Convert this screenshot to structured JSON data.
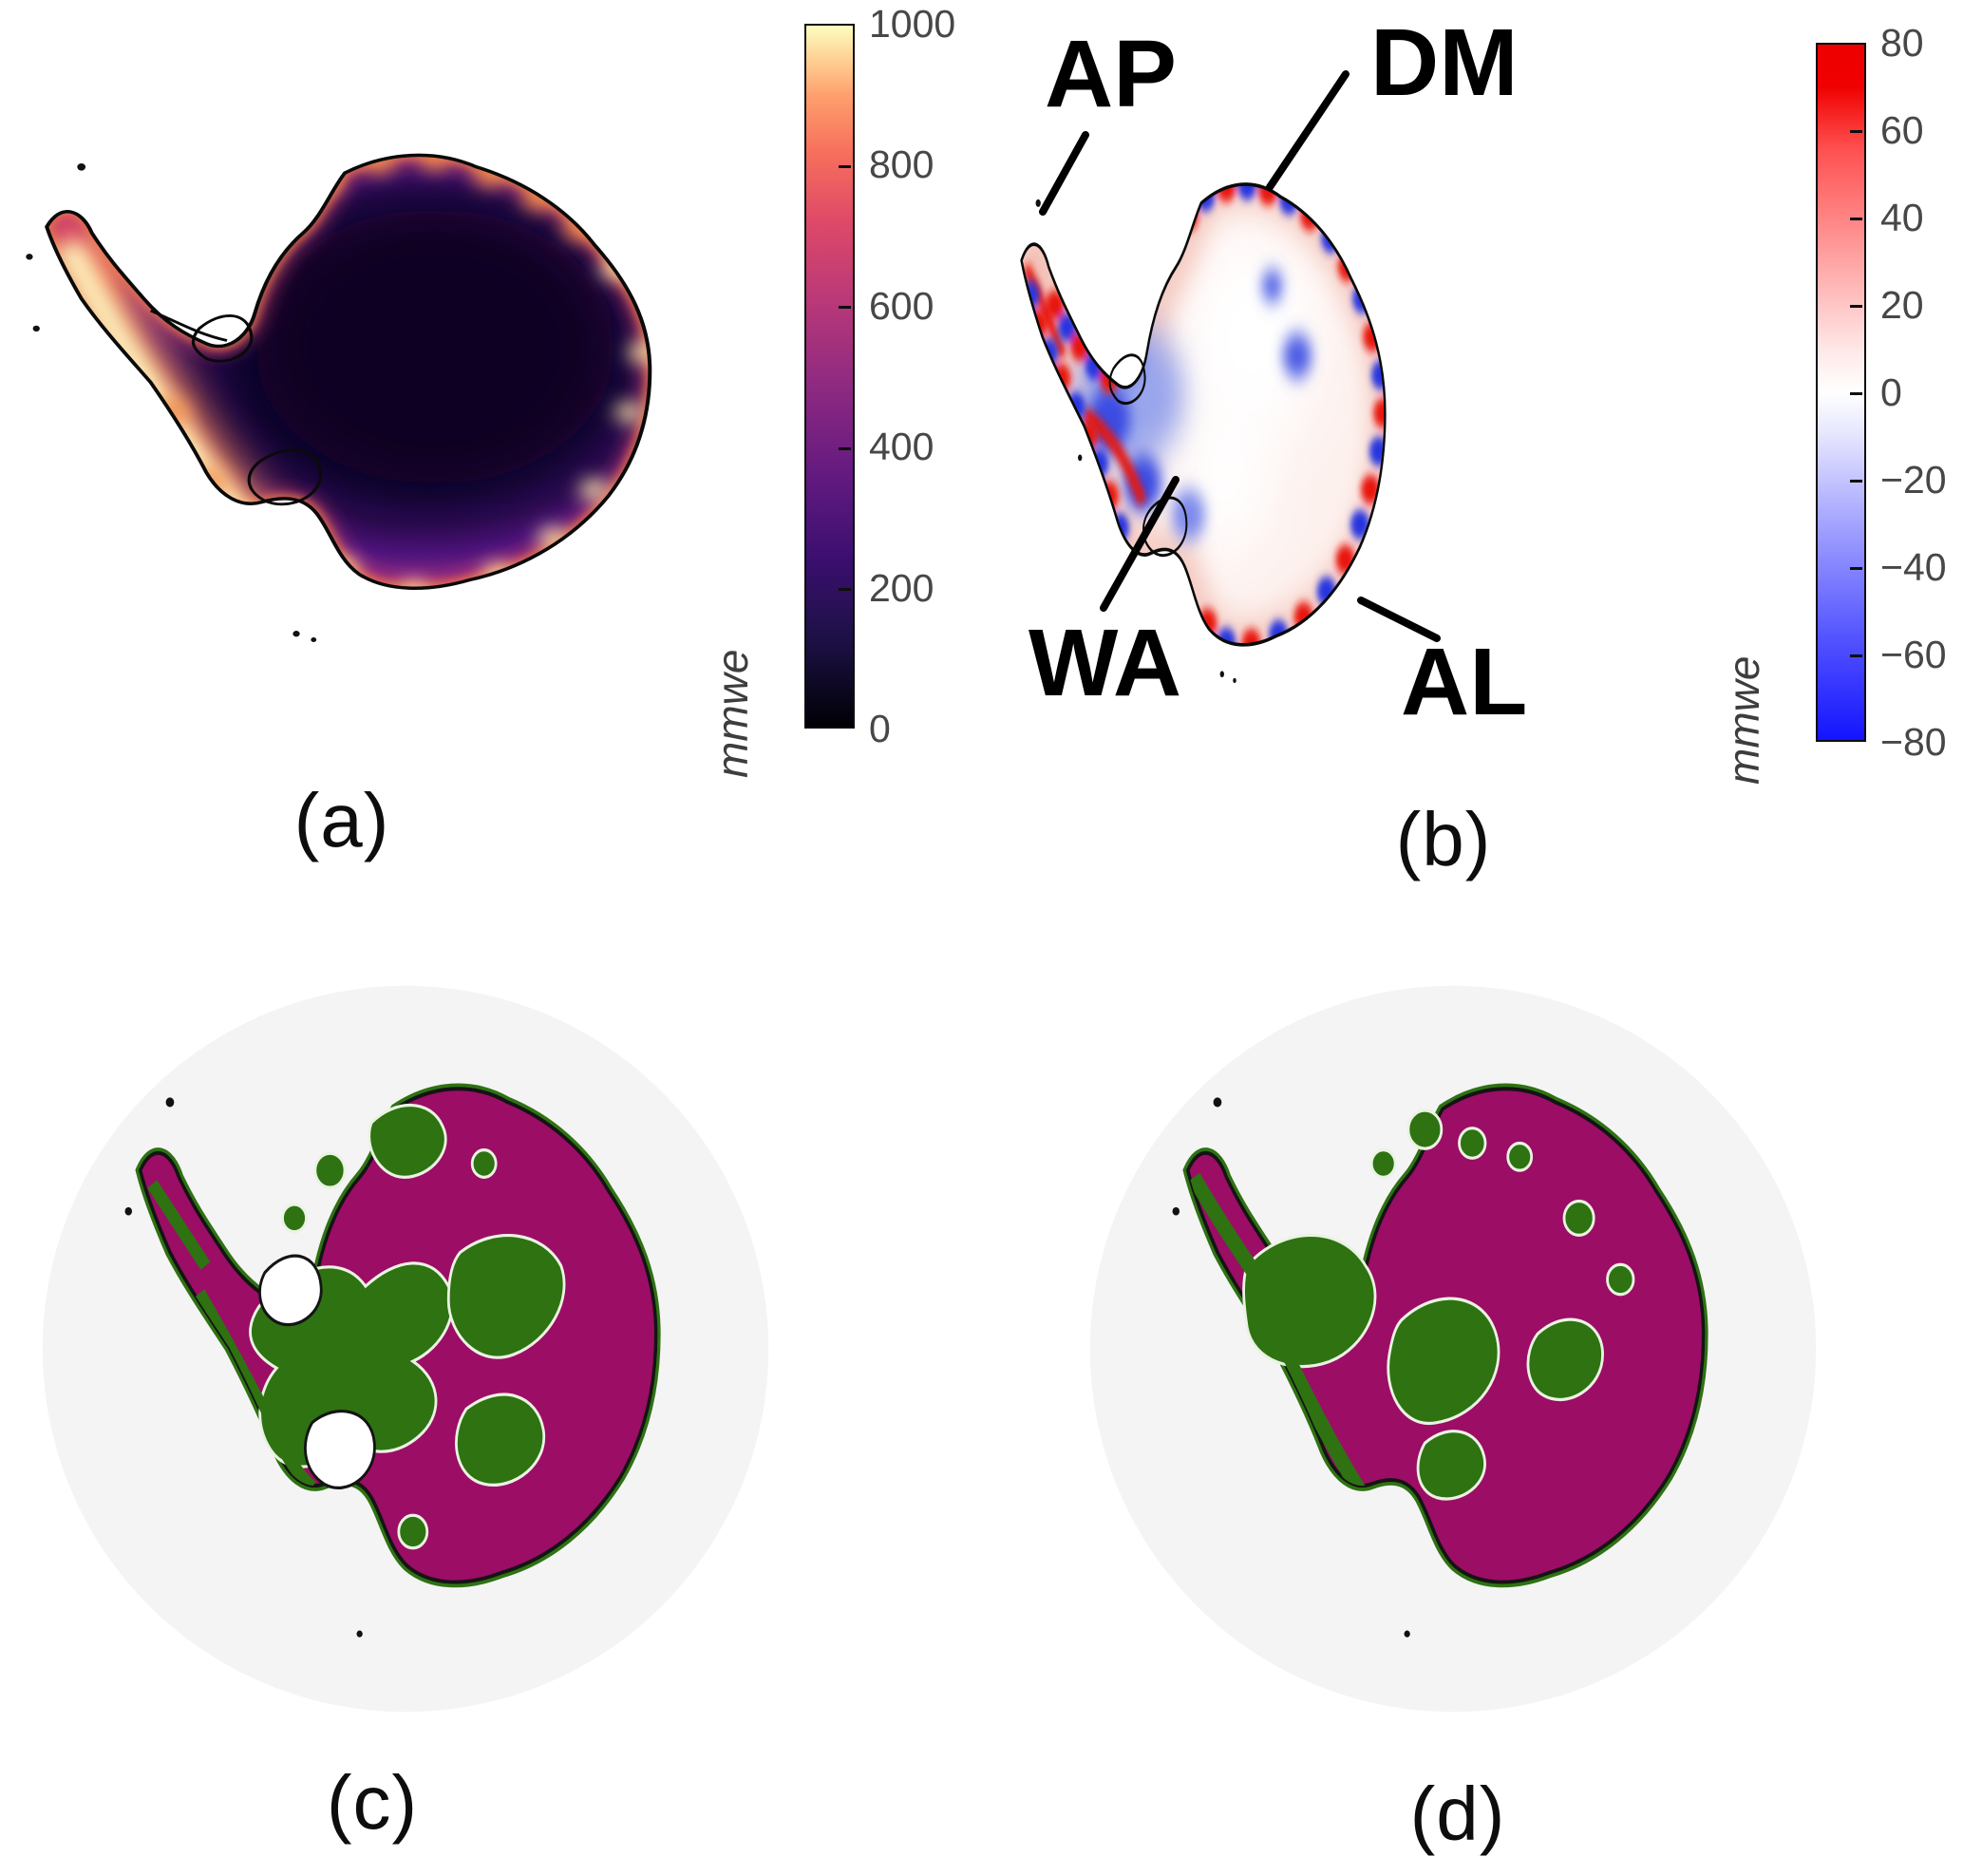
{
  "figure": {
    "panels": [
      {
        "id": "a",
        "caption": "(a)"
      },
      {
        "id": "b",
        "caption": "(b)"
      },
      {
        "id": "c",
        "caption": "(c)"
      },
      {
        "id": "d",
        "caption": "(d)"
      }
    ]
  },
  "panel_a": {
    "caption": "(a)",
    "colorbar": {
      "unit": "mmwe",
      "min": 0,
      "max": 1000,
      "tick_labels": [
        "1000",
        "800",
        "600",
        "400",
        "200",
        "0"
      ],
      "colormap": "magma"
    }
  },
  "panel_b": {
    "caption": "(b)",
    "colorbar": {
      "unit": "mmwe",
      "min": -80,
      "max": 80,
      "tick_labels": [
        "80",
        "60",
        "40",
        "20",
        "0",
        "−20",
        "−40",
        "−60",
        "−80"
      ],
      "colormap": "blue-white-red diverging"
    },
    "annotations": [
      "AP",
      "DM",
      "WA",
      "AL"
    ]
  },
  "panel_c": {
    "caption": "(c)"
  },
  "panel_d": {
    "caption": "(d)"
  },
  "colors": {
    "magma_low": "#000004",
    "magma_high": "#fcfdbf",
    "diverging_positive_red": "#ee0000",
    "diverging_negative_blue": "#1414ff",
    "class_green": "#2e7212",
    "class_magenta": "#9c0d65",
    "globe_background_gray": "#f4f4f4",
    "coastline": "#0a0a0a"
  },
  "chart_data": [
    {
      "type": "heatmap",
      "panel": "a",
      "title": "(a)",
      "region": "Antarctica (polar stereographic map)",
      "variable_unit": "mmwe",
      "colormap": "magma",
      "value_range": [
        0,
        1000
      ],
      "colorbar_ticks": [
        0,
        200,
        400,
        600,
        800,
        1000
      ],
      "pattern": "near-zero (black/dark purple) over the ice-sheet interior; values rise toward the margins; brightest band 800-1000 mmwe (cream/orange) along the West Antarctic / Antarctic Peninsula coast and scattered coastal spots"
    },
    {
      "type": "heatmap",
      "panel": "b",
      "title": "(b)",
      "region": "Antarctica (polar stereographic map)",
      "variable_unit": "mmwe",
      "colormap": "blue-white-red diverging",
      "value_range": [
        -80,
        80
      ],
      "colorbar_ticks": [
        -80,
        -60,
        -40,
        -20,
        0,
        20,
        40,
        60,
        80
      ],
      "annotations": [
        "AP",
        "DM",
        "WA",
        "AL"
      ],
      "pattern": "pale positive (light red) anomalies over East Antarctic interior; negative (blue) anomalies over West Antarctica and near Ronne region; alternating strong red/blue anomalies fringe the entire coastline"
    },
    {
      "type": "heatmap",
      "panel": "c",
      "title": "(c)",
      "region": "Antarctica on light-gray circular globe",
      "categories": [
        "green class",
        "magenta class",
        "white (ice shelves)"
      ],
      "category_colors": [
        "#2e7212",
        "#9c0d65",
        "#ffffff"
      ],
      "pattern": "binary classification map: green band across central/western interior and right-center patches; magenta over northern East Antarctica, coastal fringe and south-eastern interior; Ronne and Ross ice shelves left white"
    },
    {
      "type": "heatmap",
      "panel": "d",
      "title": "(d)",
      "region": "Antarctica on light-gray circular globe",
      "categories": [
        "green class",
        "magenta class"
      ],
      "category_colors": [
        "#2e7212",
        "#9c0d65"
      ],
      "pattern": "binary classification map: magenta dominant over East Antarctic interior and south; green patches over West Antarctica, Ronne region, central and scattered northern/right-center areas"
    }
  ]
}
